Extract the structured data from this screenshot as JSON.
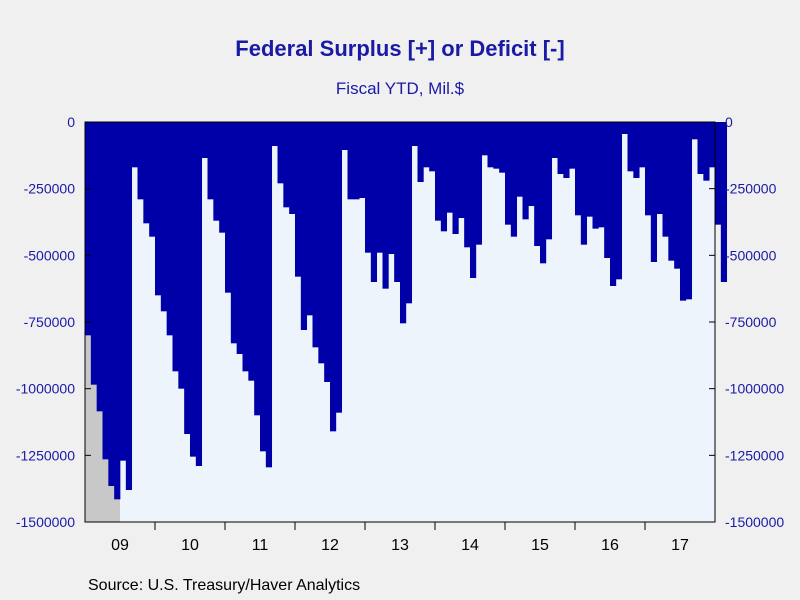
{
  "chart_data": {
    "type": "bar",
    "title": "Federal Surplus [+] or Deficit [-]",
    "subtitle": "Fiscal YTD, Mil.$",
    "source": "Source:  U.S. Treasury/Haver Analytics",
    "ylim": [
      -1500000,
      0
    ],
    "yticks": [
      0,
      -250000,
      -500000,
      -750000,
      -1000000,
      -1250000,
      -1500000
    ],
    "ytick_labels": [
      "0",
      "-250000",
      "-500000",
      "-750000",
      "-1000000",
      "-1250000",
      "-1500000"
    ],
    "x_labels": [
      "09",
      "10",
      "11",
      "12",
      "13",
      "14",
      "15",
      "16",
      "17"
    ],
    "x_label_month_index": [
      0,
      12,
      24,
      36,
      48,
      60,
      72,
      84,
      96
    ],
    "start": "2009-01",
    "end": "2017-12",
    "bar_color": "#0000a8",
    "background_color": "#eef4fc",
    "recession_shading": {
      "start": "2009-01",
      "end": "2009-06",
      "color": "#c8c8c8"
    },
    "values": [
      -800000,
      -985000,
      -1085000,
      -1265000,
      -1365000,
      -1415000,
      -1270000,
      -1380000,
      -170000,
      -290000,
      -380000,
      -430000,
      -650000,
      -710000,
      -800000,
      -935000,
      -1000000,
      -1170000,
      -1255000,
      -1290000,
      -135000,
      -290000,
      -370000,
      -415000,
      -640000,
      -830000,
      -870000,
      -935000,
      -970000,
      -1100000,
      -1235000,
      -1295000,
      -90000,
      -230000,
      -320000,
      -345000,
      -580000,
      -780000,
      -725000,
      -845000,
      -905000,
      -975000,
      -1160000,
      -1090000,
      -105000,
      -290000,
      -290000,
      -285000,
      -490000,
      -600000,
      -490000,
      -625000,
      -495000,
      -600000,
      -755000,
      -680000,
      -90000,
      -225000,
      -170000,
      -185000,
      -370000,
      -410000,
      -340000,
      -420000,
      -360000,
      -470000,
      -585000,
      -460000,
      -125000,
      -170000,
      -175000,
      -190000,
      -385000,
      -430000,
      -280000,
      -365000,
      -315000,
      -465000,
      -530000,
      -440000,
      -135000,
      -195000,
      -210000,
      -175000,
      -350000,
      -460000,
      -355000,
      -400000,
      -395000,
      -510000,
      -615000,
      -590000,
      -45000,
      -185000,
      -210000,
      -170000,
      -350000,
      -525000,
      -345000,
      -430000,
      -520000,
      -550000,
      -670000,
      -665000,
      -65000,
      -195000,
      -220000,
      -170000,
      -385000,
      -600000
    ]
  }
}
